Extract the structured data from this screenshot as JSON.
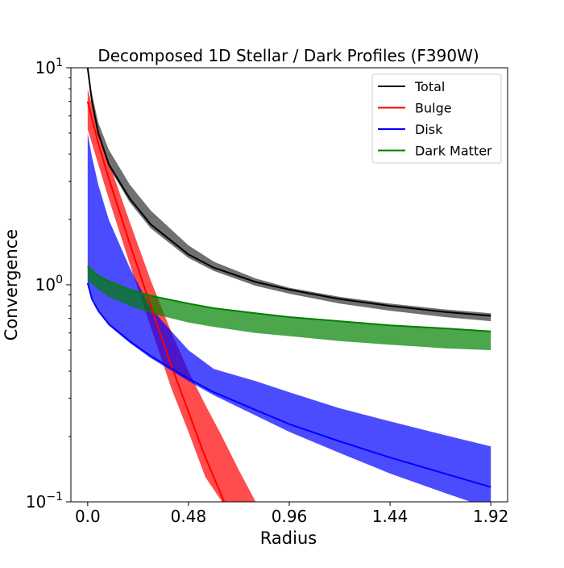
{
  "chart_data": {
    "type": "line",
    "title": "Decomposed 1D Stellar / Dark Profiles (F390W)",
    "xlabel": "Radius",
    "ylabel": "Convergence",
    "y_scale": "log",
    "xlim": [
      -0.08,
      2.0
    ],
    "ylim": [
      0.1,
      10
    ],
    "xticks": [
      0.0,
      0.48,
      0.96,
      1.44,
      1.92
    ],
    "xtick_labels": [
      "0.0",
      "0.48",
      "0.96",
      "1.44",
      "1.92"
    ],
    "ytick_labels": [
      {
        "base": "10",
        "exp": "1"
      },
      {
        "base": "10",
        "exp": "0"
      },
      {
        "base": "10",
        "exp": "−1"
      }
    ],
    "legend_placement": "top-right",
    "grid": false,
    "series": [
      {
        "name": "Total",
        "color": "#000000",
        "band_color": "#333333",
        "x": [
          0.0,
          0.02,
          0.05,
          0.1,
          0.2,
          0.3,
          0.48,
          0.6,
          0.8,
          0.96,
          1.2,
          1.44,
          1.7,
          1.92
        ],
        "values": [
          10.0,
          7.0,
          5.0,
          3.6,
          2.5,
          1.9,
          1.38,
          1.2,
          1.03,
          0.95,
          0.86,
          0.8,
          0.75,
          0.72
        ],
        "upper": [
          10.3,
          7.6,
          5.6,
          4.2,
          2.9,
          2.2,
          1.52,
          1.28,
          1.07,
          0.97,
          0.88,
          0.82,
          0.77,
          0.74
        ],
        "lower": [
          9.8,
          6.8,
          4.9,
          3.5,
          2.4,
          1.82,
          1.33,
          1.16,
          0.99,
          0.91,
          0.82,
          0.76,
          0.71,
          0.68
        ]
      },
      {
        "name": "Bulge",
        "color": "#ff0000",
        "band_color": "#ff0000",
        "x": [
          0.0,
          0.05,
          0.1,
          0.2,
          0.3,
          0.4,
          0.48,
          0.55,
          0.6,
          0.65
        ],
        "values": [
          7.0,
          4.5,
          3.1,
          1.55,
          0.8,
          0.42,
          0.26,
          0.17,
          0.13,
          0.1
        ],
        "x_band": [
          0.0,
          0.05,
          0.1,
          0.2,
          0.3,
          0.4,
          0.48,
          0.56,
          0.64,
          0.72,
          0.8
        ],
        "upper": [
          8.0,
          5.2,
          3.7,
          1.95,
          1.05,
          0.6,
          0.4,
          0.28,
          0.2,
          0.14,
          0.1
        ],
        "lower": [
          5.2,
          3.6,
          2.5,
          1.25,
          0.64,
          0.33,
          0.21,
          0.13,
          0.1,
          0.1,
          0.1
        ]
      },
      {
        "name": "Disk",
        "color": "#0000ff",
        "band_color": "#0000ff",
        "x": [
          0.0,
          0.02,
          0.05,
          0.1,
          0.2,
          0.3,
          0.48,
          0.6,
          0.8,
          0.96,
          1.2,
          1.44,
          1.7,
          1.92
        ],
        "values": [
          1.02,
          0.86,
          0.76,
          0.66,
          0.55,
          0.47,
          0.37,
          0.32,
          0.265,
          0.228,
          0.19,
          0.16,
          0.135,
          0.117
        ],
        "upper": [
          5.0,
          3.9,
          2.9,
          2.0,
          1.2,
          0.78,
          0.5,
          0.41,
          0.36,
          0.32,
          0.27,
          0.235,
          0.203,
          0.18
        ],
        "lower": [
          1.0,
          0.85,
          0.75,
          0.65,
          0.54,
          0.46,
          0.36,
          0.31,
          0.25,
          0.21,
          0.168,
          0.135,
          0.11,
          0.093
        ]
      },
      {
        "name": "Dark Matter",
        "color": "#008000",
        "band_color": "#008000",
        "x": [
          0.0,
          0.05,
          0.1,
          0.2,
          0.3,
          0.48,
          0.6,
          0.8,
          0.96,
          1.2,
          1.44,
          1.7,
          1.92
        ],
        "values": [
          1.22,
          1.1,
          1.04,
          0.95,
          0.89,
          0.82,
          0.78,
          0.74,
          0.71,
          0.68,
          0.65,
          0.63,
          0.61
        ],
        "upper": [
          1.22,
          1.1,
          1.04,
          0.95,
          0.89,
          0.82,
          0.78,
          0.74,
          0.71,
          0.68,
          0.65,
          0.63,
          0.61
        ],
        "lower": [
          1.04,
          0.95,
          0.88,
          0.8,
          0.74,
          0.67,
          0.64,
          0.6,
          0.58,
          0.55,
          0.53,
          0.51,
          0.5
        ]
      }
    ]
  }
}
